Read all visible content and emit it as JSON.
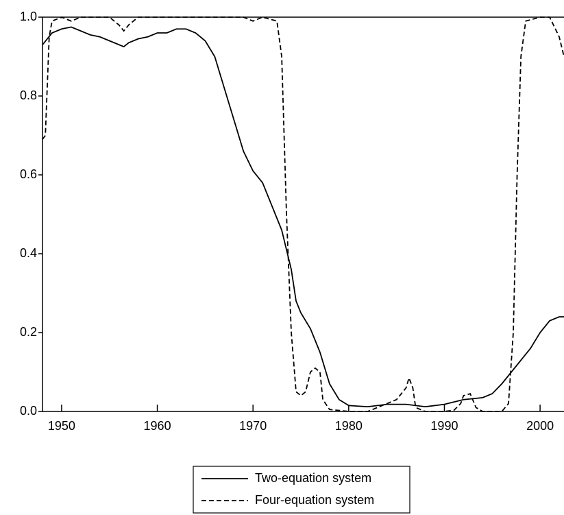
{
  "chart_data": {
    "type": "line",
    "xlim": [
      1948,
      2002.5
    ],
    "xticks": [
      1950,
      1960,
      1970,
      1980,
      1990,
      2000
    ],
    "ylim": [
      0,
      1
    ],
    "yticks": [
      {
        "value": 0,
        "label": "0.0"
      },
      {
        "value": 0.2,
        "label": "0.2"
      },
      {
        "value": 0.4,
        "label": "0.4"
      },
      {
        "value": 0.6,
        "label": "0.6"
      },
      {
        "value": 0.8,
        "label": "0.8"
      },
      {
        "value": 1,
        "label": "1.0"
      }
    ],
    "grid": false,
    "legend": "bottom",
    "series": [
      {
        "name": "Two-equation system",
        "color": "#000000",
        "dash": "solid",
        "x": [
          1948,
          1949,
          1950,
          1951,
          1952,
          1953,
          1954,
          1955,
          1956,
          1956.5,
          1957,
          1958,
          1959,
          1960,
          1961,
          1962,
          1963,
          1964,
          1965,
          1966,
          1967,
          1968,
          1969,
          1970,
          1971,
          1972,
          1973,
          1974,
          1974.5,
          1975,
          1976,
          1977,
          1978,
          1979,
          1980,
          1982,
          1984,
          1986,
          1988,
          1990,
          1992,
          1994,
          1995,
          1996,
          1997,
          1998,
          1999,
          2000,
          2001,
          2002,
          2002.5
        ],
        "values": [
          0.93,
          0.96,
          0.97,
          0.975,
          0.965,
          0.955,
          0.95,
          0.94,
          0.93,
          0.925,
          0.935,
          0.945,
          0.95,
          0.96,
          0.96,
          0.97,
          0.97,
          0.96,
          0.94,
          0.9,
          0.82,
          0.74,
          0.66,
          0.61,
          0.58,
          0.52,
          0.46,
          0.36,
          0.28,
          0.25,
          0.21,
          0.15,
          0.07,
          0.03,
          0.015,
          0.012,
          0.018,
          0.018,
          0.012,
          0.018,
          0.03,
          0.035,
          0.045,
          0.07,
          0.1,
          0.13,
          0.16,
          0.2,
          0.23,
          0.24,
          0.24
        ]
      },
      {
        "name": "Four-equation system",
        "color": "#000000",
        "dash": "dashed",
        "x": [
          1948,
          1948.3,
          1948.7,
          1949,
          1950,
          1951,
          1952,
          1955,
          1956,
          1956.5,
          1957,
          1958,
          1962,
          1969,
          1970,
          1971,
          1972.5,
          1973,
          1973.5,
          1974,
          1974.5,
          1975,
          1975.5,
          1976,
          1976.5,
          1977,
          1977.3,
          1978,
          1980,
          1982,
          1983,
          1985,
          1986,
          1986.3,
          1986.7,
          1987,
          1988,
          1990,
          1991,
          1991.7,
          1992,
          1992.7,
          1993.3,
          1994,
          1996,
          1996.7,
          1997.2,
          1997.6,
          1998,
          1998.5,
          2000,
          2001,
          2002,
          2002.5
        ],
        "values": [
          0.69,
          0.7,
          0.95,
          0.99,
          1.0,
          0.99,
          1.0,
          1.0,
          0.98,
          0.965,
          0.98,
          1.0,
          1.0,
          1.0,
          0.99,
          1.0,
          0.99,
          0.9,
          0.5,
          0.2,
          0.05,
          0.04,
          0.05,
          0.1,
          0.11,
          0.1,
          0.03,
          0.005,
          0.0,
          0.0,
          0.01,
          0.03,
          0.06,
          0.085,
          0.06,
          0.01,
          0.0,
          0.0,
          0.003,
          0.02,
          0.04,
          0.045,
          0.01,
          0.0,
          0.0,
          0.02,
          0.2,
          0.6,
          0.9,
          0.99,
          1.0,
          1.0,
          0.95,
          0.9
        ]
      }
    ]
  }
}
